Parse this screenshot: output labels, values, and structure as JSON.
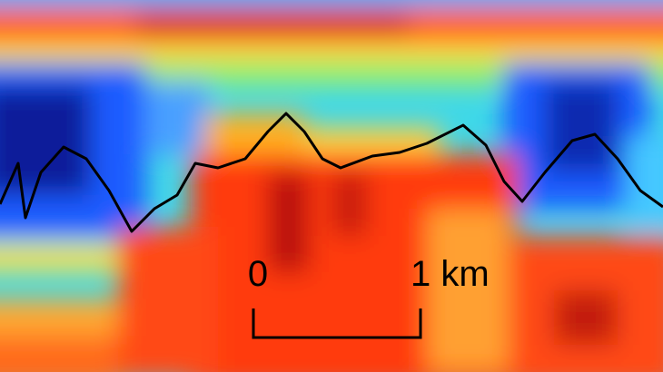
{
  "scale_bar": {
    "start_label": "0",
    "end_label": "1 km"
  }
}
